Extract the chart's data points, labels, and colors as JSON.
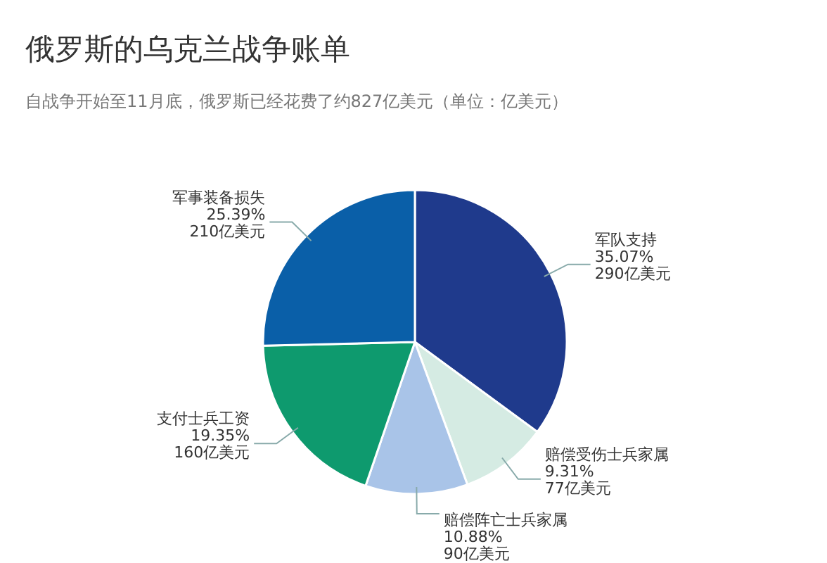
{
  "chart_data": {
    "type": "pie",
    "title": "俄罗斯的乌克兰战争账单",
    "subtitle": "自战争开始至11月底，俄罗斯已经花费了约827亿美元（单位：亿美元）",
    "categories": [
      "军队支持",
      "赔偿受伤士兵家属",
      "赔偿阵亡士兵家属",
      "支付士兵工资",
      "军事装备损失"
    ],
    "values": [
      290,
      77,
      90,
      160,
      210
    ],
    "colors": [
      "#1f3a8c",
      "#d5ebe3",
      "#a9c4e8",
      "#0e9a6e",
      "#0a5fa8"
    ],
    "value_labels": [
      "290亿美元",
      "77亿美元",
      "90亿美元",
      "160亿美元",
      "210亿美元"
    ],
    "annotations": [
      "35.07%",
      "9.31%",
      "10.88%",
      "19.35%",
      "25.39%"
    ]
  }
}
